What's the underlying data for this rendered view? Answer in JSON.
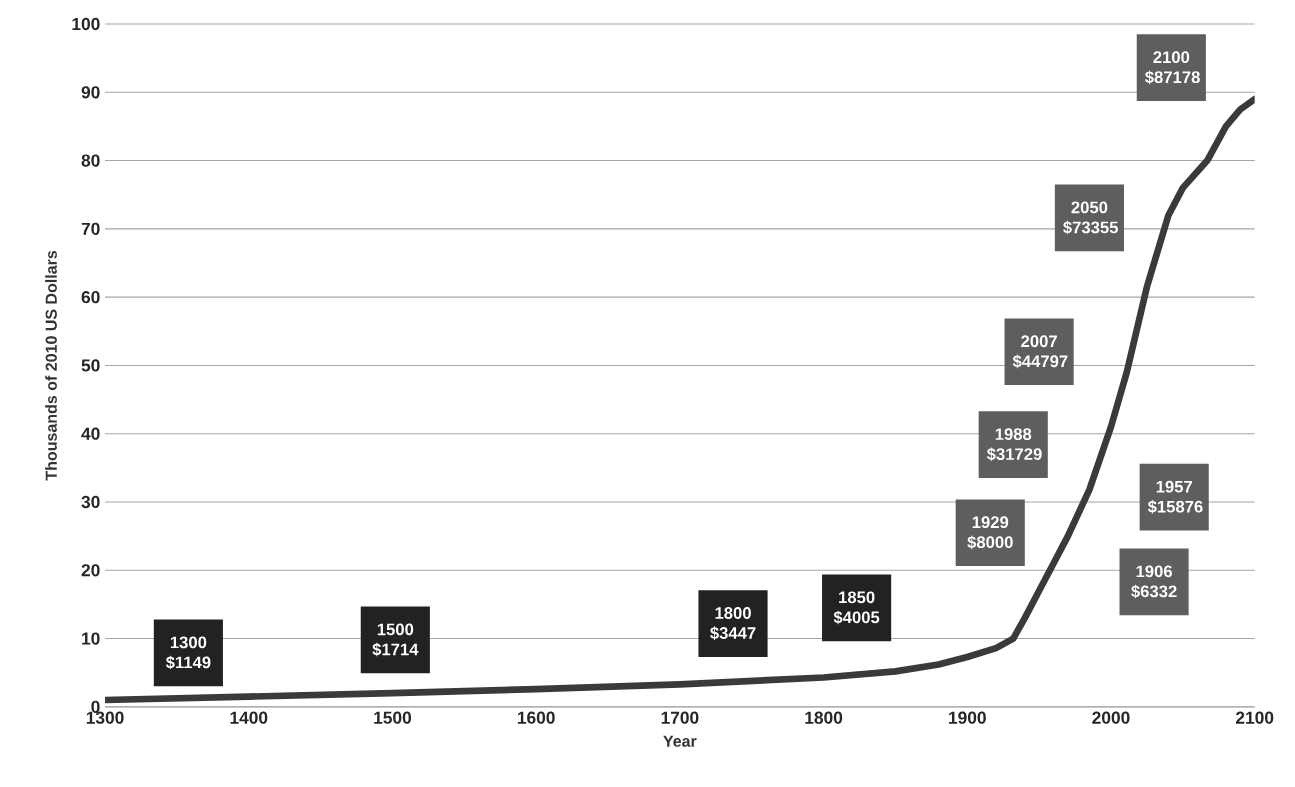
{
  "chart_data": {
    "type": "line",
    "xlabel": "Year",
    "ylabel": "Thousands of 2010 US Dollars",
    "x": [
      1300,
      1400,
      1500,
      1600,
      1700,
      1800,
      1850,
      1880,
      1900,
      1920,
      1932,
      1940,
      1950,
      1960,
      1970,
      1985,
      2000,
      2011,
      2025,
      2040,
      2050,
      2067,
      2080,
      2090,
      2100
    ],
    "series": [
      {
        "color": "#3a3a3a",
        "values": [
          1.0,
          1.5,
          2.0,
          2.6,
          3.3,
          4.3,
          5.2,
          6.2,
          7.3,
          8.6,
          10,
          13,
          17,
          21,
          25,
          31.8,
          41,
          49,
          61.5,
          72,
          76,
          80,
          85,
          87.5,
          89
        ]
      }
    ],
    "xlim": [
      1300,
      2100
    ],
    "xticks": [
      1300,
      1400,
      1500,
      1600,
      1700,
      1800,
      1900,
      2000,
      2100
    ],
    "ylim": [
      0,
      100
    ],
    "yticks": [
      0,
      10,
      20,
      30,
      40,
      50,
      60,
      70,
      80,
      90,
      100
    ],
    "grid": "y",
    "marker": "none",
    "line_style": "solid",
    "annotations": [
      "1300 $1149",
      "1500 $1714",
      "1800 $3447",
      "1850 $4005",
      "1929 $8000",
      "1906 $6332",
      "1957 $15876",
      "1988 $31729",
      "2007 $44797",
      "2050 $73355",
      "2100 $87178"
    ]
  }
}
